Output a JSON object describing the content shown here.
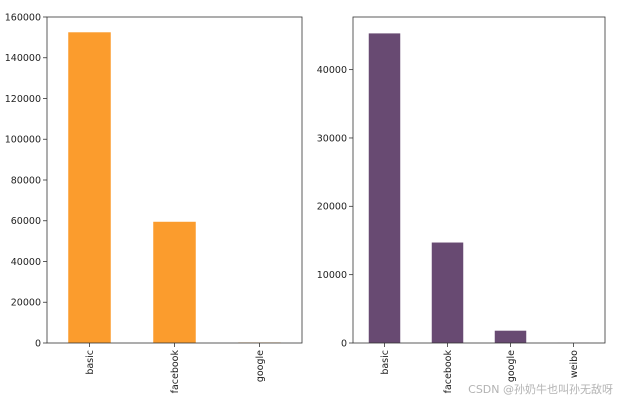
{
  "chart_data": [
    {
      "type": "bar",
      "categories": [
        "basic",
        "facebook",
        "google"
      ],
      "values": [
        152500,
        59500,
        250
      ],
      "ylim": [
        0,
        160000
      ],
      "yticks": [
        0,
        20000,
        40000,
        60000,
        80000,
        100000,
        120000,
        140000,
        160000
      ],
      "ytick_labels": [
        "0",
        "20000",
        "40000",
        "60000",
        "80000",
        "100000",
        "120000",
        "140000",
        "160000"
      ],
      "title": "",
      "xlabel": "",
      "ylabel": "",
      "color": "#fb9c2d",
      "grid": false
    },
    {
      "type": "bar",
      "categories": [
        "basic",
        "facebook",
        "google",
        "weibo"
      ],
      "values": [
        45300,
        14700,
        1800,
        10
      ],
      "ylim": [
        0,
        47700
      ],
      "yticks": [
        0,
        10000,
        20000,
        30000,
        40000
      ],
      "ytick_labels": [
        "0",
        "10000",
        "20000",
        "30000",
        "40000"
      ],
      "title": "",
      "xlabel": "",
      "ylabel": "",
      "color": "#684a72",
      "grid": false
    }
  ],
  "watermark": "CSDN @孙奶牛也叫孙无敌呀"
}
